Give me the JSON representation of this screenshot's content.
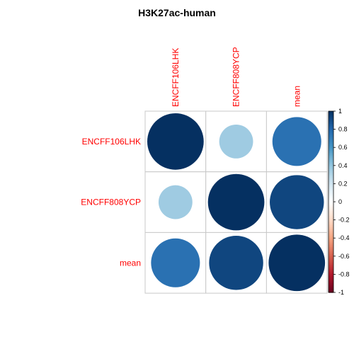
{
  "chart_data": {
    "type": "heatmap",
    "title": "H3K27ac-human",
    "rows": [
      "ENCFF106LHK",
      "ENCFF808YCP",
      "mean"
    ],
    "columns": [
      "ENCFF106LHK",
      "ENCFF808YCP",
      "mean"
    ],
    "values": [
      [
        1.0,
        0.36,
        0.75
      ],
      [
        0.36,
        1.0,
        0.92
      ],
      [
        0.75,
        0.92,
        1.0
      ]
    ],
    "glyph": "circle",
    "label_color": "#FF0000",
    "colorbar": {
      "range": [
        -1,
        1
      ],
      "tick_labels": [
        "1",
        "0.8",
        "0.6",
        "0.4",
        "0.2",
        "0",
        "-0.2",
        "-0.4",
        "-0.6",
        "-0.8",
        "-1"
      ],
      "tick_values": [
        1,
        0.8,
        0.6,
        0.4,
        0.2,
        0,
        -0.2,
        -0.4,
        -0.6,
        -0.8,
        -1
      ],
      "colors": [
        "#67001F",
        "#B2182B",
        "#D6604D",
        "#F4A582",
        "#FDDBC7",
        "#FFFFFF",
        "#D1E5F0",
        "#92C5DE",
        "#4393C3",
        "#2166AC",
        "#053061"
      ]
    }
  }
}
